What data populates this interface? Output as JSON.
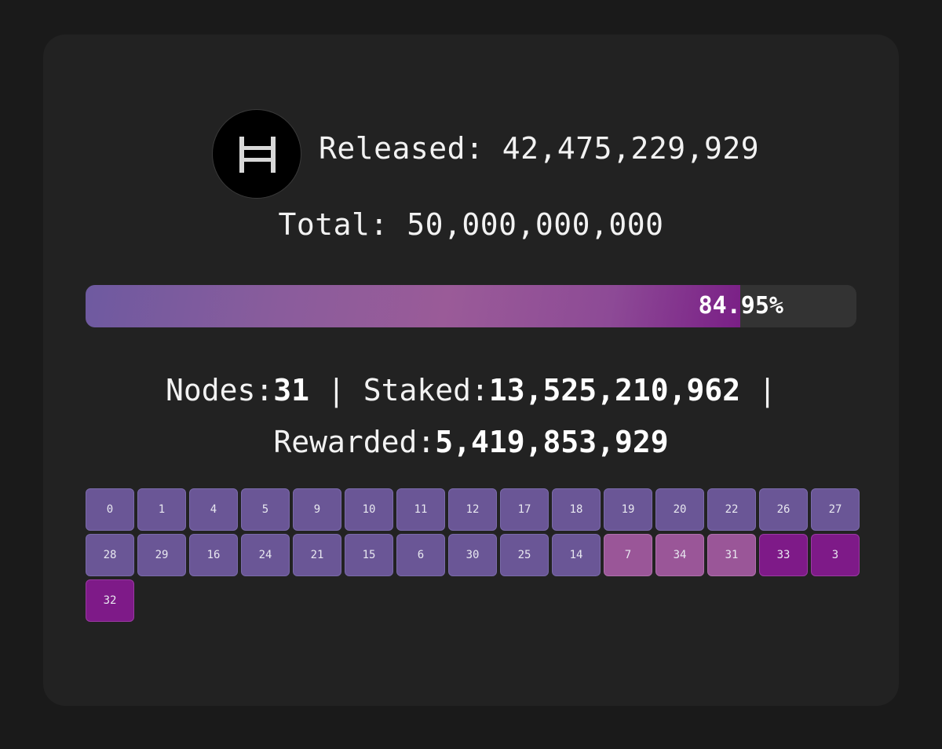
{
  "header": {
    "logo_icon": "hbar-h-icon",
    "released_label": "Released:",
    "released_value": "42,475,229,929"
  },
  "total": {
    "label": "Total:",
    "value": "50,000,000,000"
  },
  "progress": {
    "percent": 84.95,
    "label": "84.95%"
  },
  "stats": {
    "nodes_label": "Nodes:",
    "nodes_value": "31",
    "sep1": "|",
    "staked_label": "Staked:",
    "staked_value": "13,525,210,962",
    "sep2": "|",
    "rewarded_label": "Rewarded:",
    "rewarded_value": "5,419,853,929"
  },
  "nodes": [
    {
      "id": "0",
      "level": "low"
    },
    {
      "id": "1",
      "level": "low"
    },
    {
      "id": "4",
      "level": "low"
    },
    {
      "id": "5",
      "level": "low"
    },
    {
      "id": "9",
      "level": "low"
    },
    {
      "id": "10",
      "level": "low"
    },
    {
      "id": "11",
      "level": "low"
    },
    {
      "id": "12",
      "level": "low"
    },
    {
      "id": "17",
      "level": "low"
    },
    {
      "id": "18",
      "level": "low"
    },
    {
      "id": "19",
      "level": "low"
    },
    {
      "id": "20",
      "level": "low"
    },
    {
      "id": "22",
      "level": "low"
    },
    {
      "id": "26",
      "level": "low"
    },
    {
      "id": "27",
      "level": "low"
    },
    {
      "id": "28",
      "level": "low"
    },
    {
      "id": "29",
      "level": "low"
    },
    {
      "id": "16",
      "level": "low"
    },
    {
      "id": "24",
      "level": "low"
    },
    {
      "id": "21",
      "level": "low"
    },
    {
      "id": "15",
      "level": "low"
    },
    {
      "id": "6",
      "level": "low"
    },
    {
      "id": "30",
      "level": "low"
    },
    {
      "id": "25",
      "level": "low"
    },
    {
      "id": "14",
      "level": "low"
    },
    {
      "id": "7",
      "level": "mid"
    },
    {
      "id": "34",
      "level": "mid"
    },
    {
      "id": "31",
      "level": "mid"
    },
    {
      "id": "33",
      "level": "high"
    },
    {
      "id": "3",
      "level": "high"
    },
    {
      "id": "32",
      "level": "high"
    }
  ],
  "colors": {
    "background": "#1a1a1a",
    "card": "#222222",
    "node_low": "#6a5696",
    "node_mid": "#9a5698",
    "node_high": "#7e1a88"
  }
}
